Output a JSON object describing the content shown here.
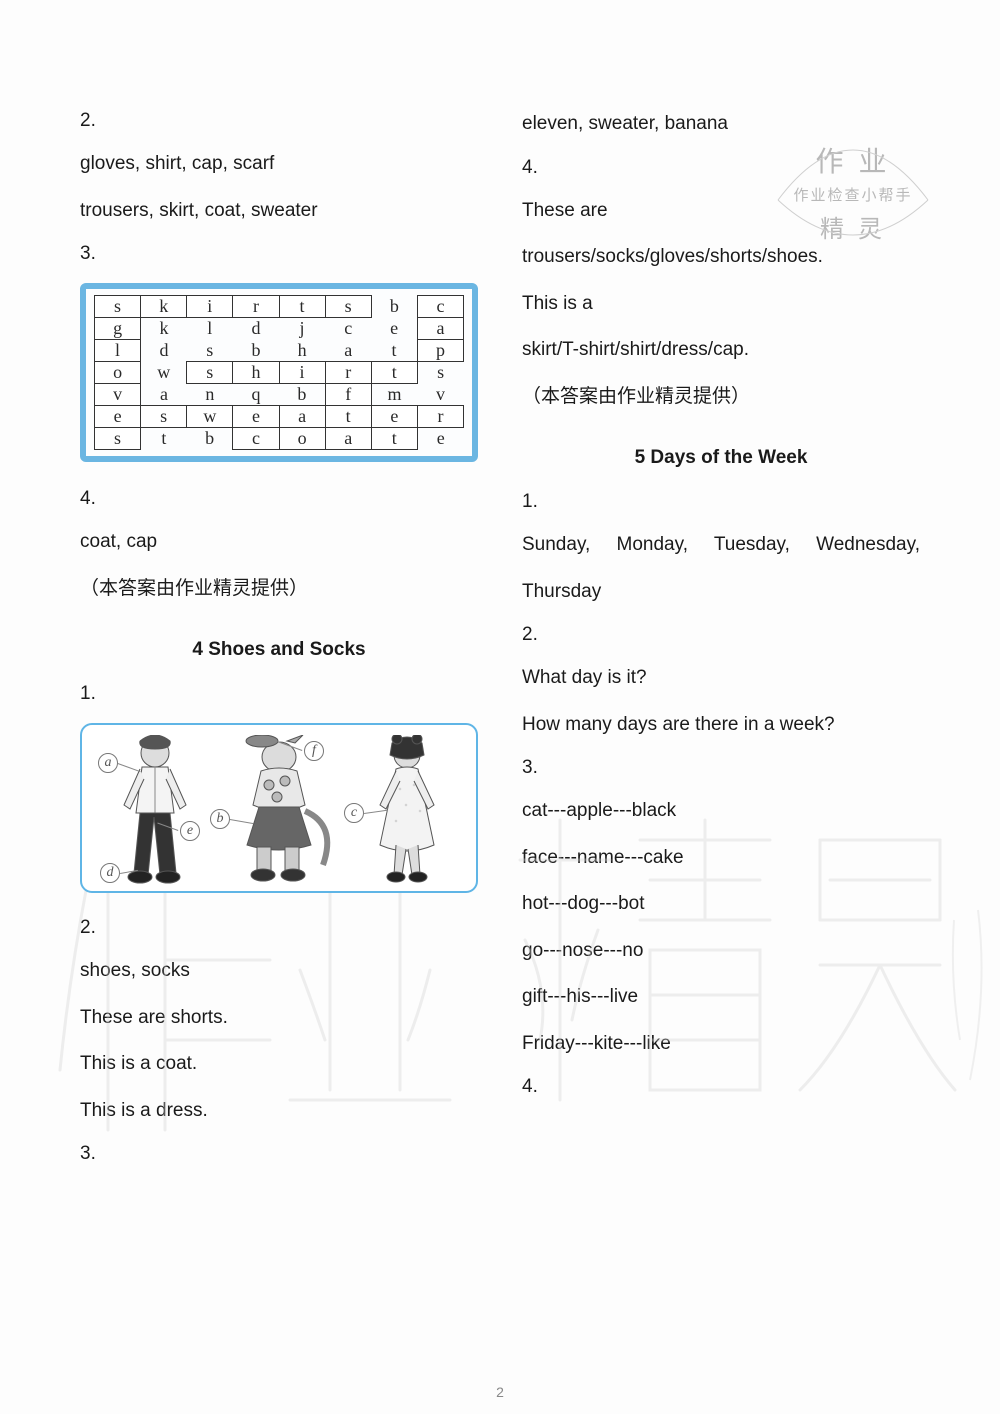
{
  "page_number": "2",
  "left": {
    "p2_num": "2.",
    "p2_l1": "gloves, shirt, cap, scarf",
    "p2_l2": "trousers, skirt, coat, sweater",
    "p3_num": "3.",
    "grid": {
      "cells": [
        [
          "s",
          "k",
          "i",
          "r",
          "t",
          "s",
          "b",
          "c"
        ],
        [
          "g",
          "k",
          "l",
          "d",
          "j",
          "c",
          "e",
          "a"
        ],
        [
          "l",
          "d",
          "s",
          "b",
          "h",
          "a",
          "t",
          "p"
        ],
        [
          "o",
          "w",
          "s",
          "h",
          "i",
          "r",
          "t",
          "s"
        ],
        [
          "v",
          "a",
          "n",
          "q",
          "b",
          "f",
          "m",
          "v"
        ],
        [
          "e",
          "s",
          "w",
          "e",
          "a",
          "t",
          "e",
          "r"
        ],
        [
          "s",
          "t",
          "b",
          "c",
          "o",
          "a",
          "t",
          "e"
        ]
      ],
      "highlight": [
        [
          0,
          0
        ],
        [
          0,
          1
        ],
        [
          0,
          2
        ],
        [
          0,
          3
        ],
        [
          0,
          4
        ],
        [
          0,
          7
        ],
        [
          1,
          7
        ],
        [
          2,
          7
        ],
        [
          3,
          2
        ],
        [
          3,
          3
        ],
        [
          3,
          4
        ],
        [
          3,
          5
        ],
        [
          3,
          6
        ],
        [
          5,
          1
        ],
        [
          5,
          2
        ],
        [
          5,
          3
        ],
        [
          5,
          4
        ],
        [
          5,
          5
        ],
        [
          5,
          6
        ],
        [
          5,
          7
        ],
        [
          6,
          3
        ],
        [
          6,
          4
        ],
        [
          6,
          5
        ],
        [
          6,
          6
        ],
        [
          1,
          0
        ],
        [
          2,
          0
        ],
        [
          3,
          0
        ],
        [
          4,
          0
        ],
        [
          5,
          0
        ],
        [
          6,
          0
        ],
        [
          4,
          5
        ],
        [
          0,
          5
        ]
      ],
      "border_color": "#6bb6e2",
      "cell_font": "Times New Roman"
    },
    "p4_num": "4.",
    "p4_l1": "coat, cap",
    "credit": "（本答案由作业精灵提供）",
    "heading4": "4 Shoes and Socks",
    "s4_p1_num": "1.",
    "fig": {
      "tags": [
        "a",
        "b",
        "c",
        "d",
        "e",
        "f"
      ],
      "border_color": "#5fb5e6"
    },
    "s4_p2_num": "2.",
    "s4_p2_l1": "shoes, socks",
    "s4_p2_l2": "These are shorts.",
    "s4_p2_l3": "This is a coat.",
    "s4_p2_l4": "This is a dress.",
    "s4_p3_num": "3."
  },
  "right": {
    "top_l1": "eleven, sweater, banana",
    "p4_num": "4.",
    "p4_l1": "These are",
    "p4_l2": "trousers/socks/gloves/shorts/shoes.",
    "p4_l3": "This is a",
    "p4_l4": "skirt/T-shirt/shirt/dress/cap.",
    "credit": "（本答案由作业精灵提供）",
    "heading5": "5 Days of the Week",
    "s5_p1_num": "1.",
    "s5_p1_l1": "Sunday, Monday, Tuesday, Wednesday,",
    "s5_p1_l2": "Thursday",
    "s5_p2_num": "2.",
    "s5_p2_l1": "What day is it?",
    "s5_p2_l2": "How many days are there in a week?",
    "s5_p3_num": "3.",
    "s5_p3_l1": "cat---apple---black",
    "s5_p3_l2": "face---name---cake",
    "s5_p3_l3": "hot---dog---bot",
    "s5_p3_l4": "go---nose---no",
    "s5_p3_l5": "gift---his---live",
    "s5_p3_l6": "Friday---kite---like",
    "s5_p4_num": "4."
  },
  "stamp": {
    "l1": "作 业",
    "l2": "作业检查小帮手",
    "l3": "精 灵"
  },
  "watermark": {
    "left_chars": "作业",
    "right_chars": "精灵",
    "color": "#d6d6d6"
  }
}
